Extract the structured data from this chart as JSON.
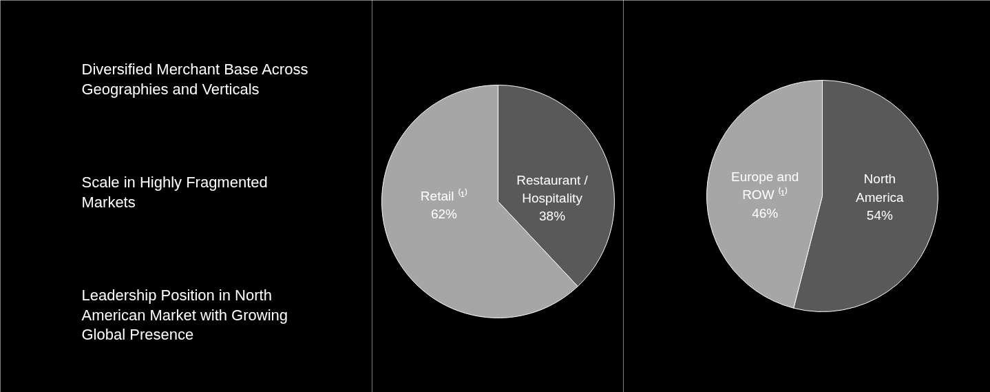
{
  "chart_data": [
    {
      "type": "other",
      "annotations": [
        "Diversified Merchant Base Across Geographies and Verticals",
        "Scale in Highly Fragmented Markets",
        "Leadership Position in North American Market with Growing Global Presence"
      ]
    },
    {
      "type": "pie",
      "categories": [
        "Restaurant / Hospitality",
        "Retail ⁽¹⁾"
      ],
      "values": [
        38,
        62
      ],
      "colors": [
        "#595959",
        "#a6a6a6"
      ],
      "value_labels": [
        "38%",
        "62%"
      ]
    },
    {
      "type": "pie",
      "categories": [
        "North America",
        "Europe and ROW ⁽¹⁾"
      ],
      "values": [
        54,
        46
      ],
      "colors": [
        "#595959",
        "#a6a6a6"
      ],
      "value_labels": [
        "54%",
        "46%"
      ]
    }
  ]
}
